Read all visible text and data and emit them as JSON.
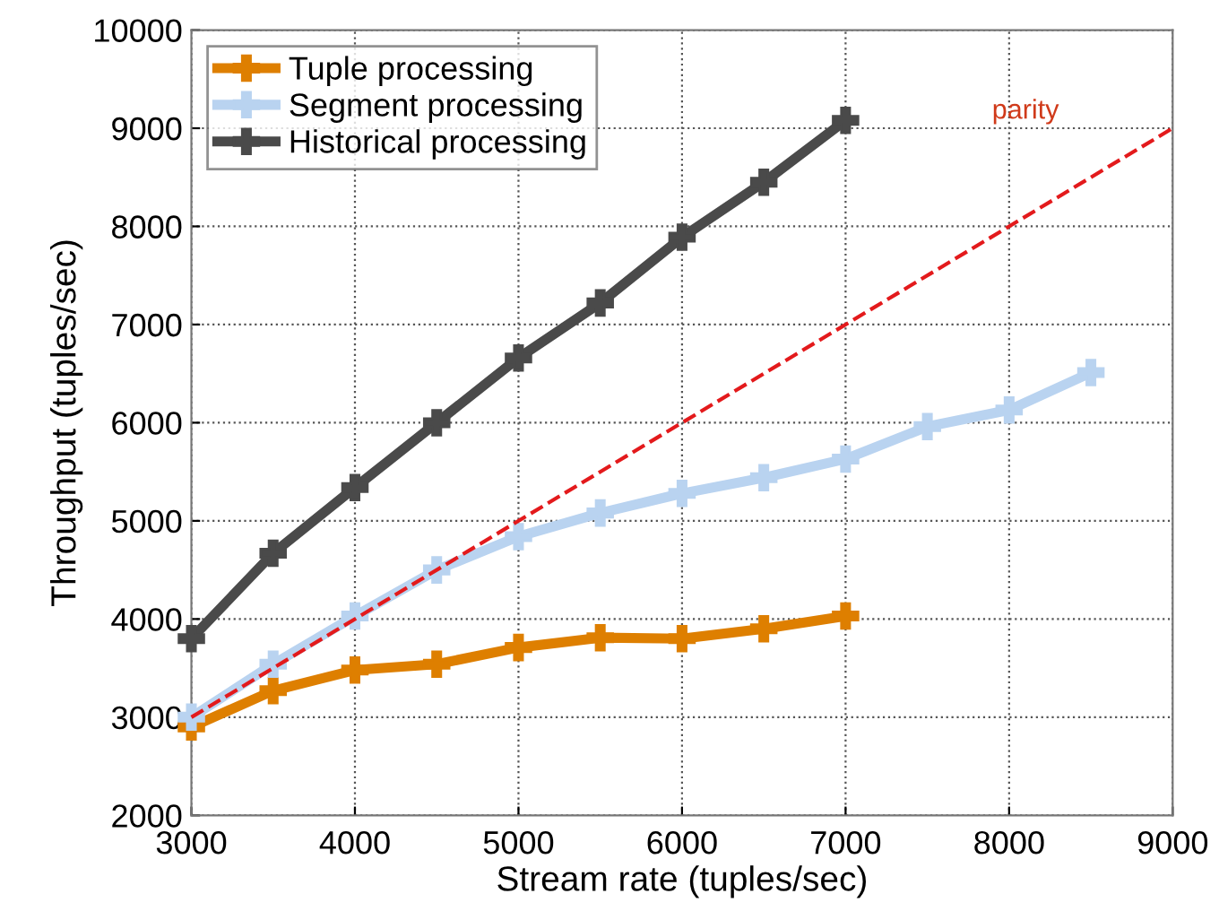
{
  "chart_data": {
    "type": "line",
    "xlabel": "Stream rate (tuples/sec)",
    "ylabel": "Throughput (tuples/sec)",
    "xlim": [
      3000,
      9000
    ],
    "xticks": [
      3000,
      4000,
      5000,
      6000,
      7000,
      8000,
      9000
    ],
    "ylim": [
      2000,
      10000
    ],
    "yticks": [
      2000,
      3000,
      4000,
      5000,
      6000,
      7000,
      8000,
      9000,
      10000
    ],
    "grid": true,
    "legend": "top left",
    "marker": "cross",
    "line_style": "solid",
    "series": [
      {
        "name": "Tuple processing",
        "color": "#de7f00",
        "x": [
          3000,
          3500,
          4000,
          4500,
          5000,
          5500,
          6000,
          6500,
          7000
        ],
        "values": [
          2900,
          3270,
          3480,
          3540,
          3710,
          3810,
          3800,
          3900,
          4030
        ]
      },
      {
        "name": "Segment processing",
        "color": "#b9d3f0",
        "x": [
          3000,
          3500,
          4000,
          4500,
          5000,
          5500,
          6000,
          6500,
          7000,
          7500,
          8000,
          8500
        ],
        "values": [
          3000,
          3540,
          4030,
          4500,
          4840,
          5080,
          5280,
          5440,
          5630,
          5960,
          6130,
          6510
        ]
      },
      {
        "name": "Historical processing",
        "color": "#4a4a4a",
        "x": [
          3000,
          3500,
          4000,
          4500,
          5000,
          5500,
          6000,
          6500,
          7000
        ],
        "values": [
          3800,
          4670,
          5340,
          6000,
          6660,
          7220,
          7890,
          8450,
          9080
        ]
      },
      {
        "color": "#e31a1c",
        "x": [
          3000,
          9000
        ],
        "values": [
          3000,
          9000
        ],
        "marker": "none",
        "line_style": "dashed"
      }
    ],
    "annotations": [
      "parity"
    ]
  }
}
